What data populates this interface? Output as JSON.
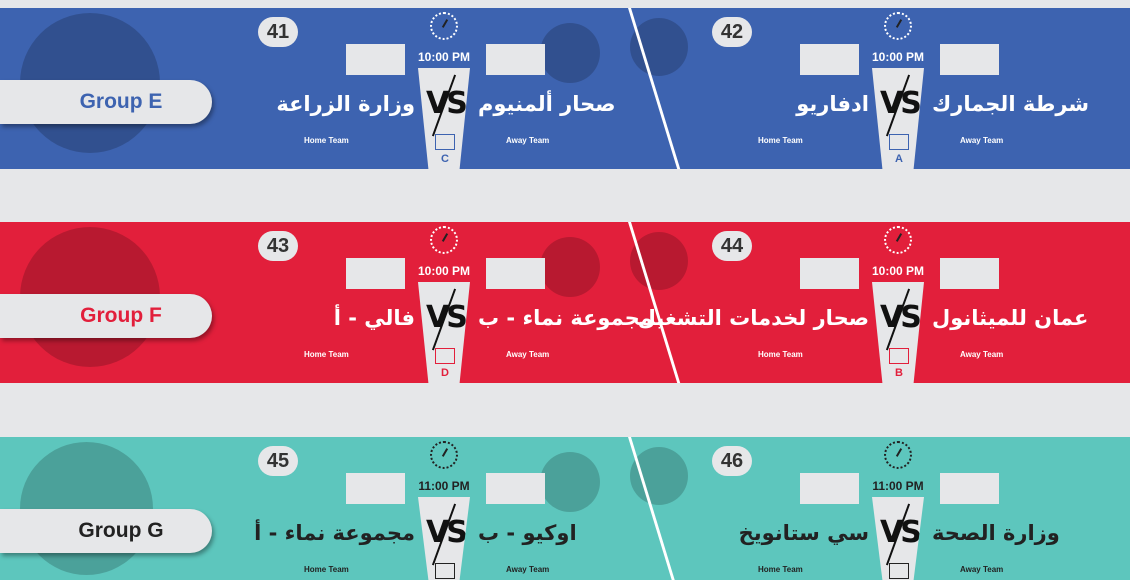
{
  "colors": {
    "blue": "#3d63b0",
    "red": "#e21f3b",
    "teal": "#5dc6bd",
    "background": "#e6e7e9"
  },
  "labels": {
    "home": "Home Team",
    "away": "Away Team"
  },
  "groups": [
    {
      "name": "Group E",
      "color": "#3d63b0",
      "text_color": "#3d63b0",
      "dark": false,
      "matches": [
        {
          "number": "42",
          "time": "10:00 PM",
          "home": "ادفاريو",
          "away": "شرطة الجمارك",
          "venue": "A"
        },
        {
          "number": "41",
          "time": "10:00 PM",
          "home": "وزارة الزراعة",
          "away": "صحار ألمنيوم",
          "venue": "C"
        }
      ]
    },
    {
      "name": "Group F",
      "color": "#e21f3b",
      "text_color": "#e21f3b",
      "dark": false,
      "matches": [
        {
          "number": "44",
          "time": "10:00 PM",
          "home": "صحار لخدمات التشغيل",
          "away": "عمان للميثانول",
          "venue": "B"
        },
        {
          "number": "43",
          "time": "10:00 PM",
          "home": "فالي - أ",
          "away": "مجموعة نماء - ب",
          "venue": "D"
        }
      ]
    },
    {
      "name": "Group G",
      "color": "#5dc6bd",
      "text_color": "#222222",
      "dark": true,
      "matches": [
        {
          "number": "46",
          "time": "11:00 PM",
          "home": "سي ستانويخ",
          "away": "وزارة الصحة",
          "venue": ""
        },
        {
          "number": "45",
          "time": "11:00 PM",
          "home": "مجموعة نماء - أ",
          "away": "اوكيو - ب",
          "venue": ""
        }
      ]
    }
  ]
}
